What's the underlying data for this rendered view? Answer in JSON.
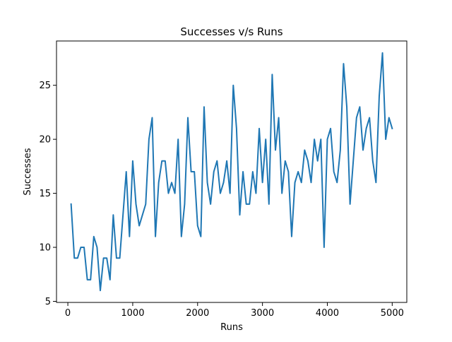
{
  "chart_data": {
    "type": "line",
    "title": "Successes v/s Runs",
    "xlabel": "Runs",
    "ylabel": "Successes",
    "xlim": [
      -175,
      5225
    ],
    "ylim": [
      4.9,
      29.1
    ],
    "xticks": [
      0,
      1000,
      2000,
      3000,
      4000,
      5000
    ],
    "xtick_labels": [
      "0",
      "1000",
      "2000",
      "3000",
      "4000",
      "5000"
    ],
    "yticks": [
      5,
      10,
      15,
      20,
      25
    ],
    "ytick_labels": [
      "5",
      "10",
      "15",
      "20",
      "25"
    ],
    "grid": false,
    "legend": "none",
    "color": "#1f77b4",
    "series": [
      {
        "x": [
          50,
          100,
          150,
          200,
          250,
          300,
          350,
          400,
          450,
          500,
          550,
          600,
          650,
          700,
          750,
          800,
          850,
          900,
          950,
          1000,
          1050,
          1100,
          1150,
          1200,
          1250,
          1300,
          1350,
          1400,
          1450,
          1500,
          1550,
          1600,
          1650,
          1700,
          1750,
          1800,
          1850,
          1900,
          1950,
          2000,
          2050,
          2100,
          2150,
          2200,
          2250,
          2300,
          2350,
          2400,
          2450,
          2500,
          2550,
          2600,
          2650,
          2700,
          2750,
          2800,
          2850,
          2900,
          2950,
          3000,
          3050,
          3100,
          3150,
          3200,
          3250,
          3300,
          3350,
          3400,
          3450,
          3500,
          3550,
          3600,
          3650,
          3700,
          3750,
          3800,
          3850,
          3900,
          3950,
          4000,
          4050,
          4100,
          4150,
          4200,
          4250,
          4300,
          4350,
          4400,
          4450,
          4500,
          4550,
          4600,
          4650,
          4700,
          4750,
          4800,
          4850,
          4900,
          4950,
          5000
        ],
        "y": [
          14,
          9,
          9,
          10,
          10,
          7,
          7,
          11,
          10,
          6,
          9,
          9,
          7,
          13,
          9,
          9,
          13,
          17,
          11,
          18,
          14,
          12,
          13,
          14,
          20,
          22,
          11,
          16,
          18,
          18,
          15,
          16,
          15,
          20,
          11,
          14,
          22,
          17,
          17,
          12,
          11,
          23,
          16,
          14,
          17,
          18,
          15,
          16,
          18,
          15,
          25,
          21,
          13,
          17,
          14,
          14,
          17,
          15,
          21,
          16,
          20,
          14,
          26,
          19,
          22,
          15,
          18,
          17,
          11,
          16,
          17,
          16,
          19,
          18,
          16,
          20,
          18,
          20,
          10,
          20,
          21,
          17,
          16,
          19,
          27,
          23,
          14,
          18,
          22,
          23,
          19,
          21,
          22,
          18,
          16,
          24,
          28,
          20,
          22,
          21
        ]
      }
    ]
  }
}
